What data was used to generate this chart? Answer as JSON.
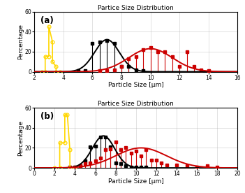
{
  "title": "Partice Size Distribution",
  "xlabel": "Particle Size [μm]",
  "ylabel": "Percentage",
  "subplot_a": {
    "label": "(a)",
    "xlim": [
      2,
      16
    ],
    "ylim": [
      0,
      60
    ],
    "xticks": [
      2,
      4,
      6,
      8,
      10,
      12,
      14,
      16
    ],
    "yticks": [
      0,
      20,
      40,
      60
    ],
    "yellow_x": [
      2.5,
      2.75,
      2.75,
      3.0,
      3.0,
      3.25,
      3.25,
      3.5,
      3.5,
      3.75
    ],
    "yellow_y": [
      0,
      0,
      15,
      15,
      45,
      30,
      10,
      5,
      0,
      0
    ],
    "black_x": [
      5.0,
      5.5,
      6.0,
      6.5,
      7.0,
      7.5,
      8.0,
      8.5,
      9.0,
      9.5
    ],
    "black_y": [
      1,
      1,
      28,
      30,
      31,
      28,
      5,
      5,
      2,
      1
    ],
    "black_mean": 7.0,
    "black_std": 0.85,
    "black_amp": 32,
    "red_x": [
      6.5,
      7.0,
      7.5,
      8.0,
      8.5,
      9.0,
      9.5,
      10.0,
      10.5,
      11.0,
      11.5,
      12.0,
      12.5,
      13.0,
      13.5,
      14.0
    ],
    "red_y": [
      1,
      1,
      2,
      5,
      13,
      15,
      22,
      24,
      20,
      20,
      15,
      5,
      20,
      5,
      2,
      1
    ],
    "red_mean": 10.0,
    "red_std": 1.5,
    "red_amp": 23
  },
  "subplot_b": {
    "label": "(b)",
    "xlim": [
      0,
      20
    ],
    "ylim": [
      0,
      60
    ],
    "xticks": [
      0,
      2,
      4,
      6,
      8,
      10,
      12,
      14,
      16,
      18,
      20
    ],
    "yticks": [
      0,
      20,
      40,
      60
    ],
    "yellow_x": [
      2.0,
      2.5,
      2.5,
      3.0,
      3.0,
      3.25,
      3.5,
      3.5,
      4.0
    ],
    "yellow_y": [
      0,
      0,
      25,
      25,
      53,
      53,
      18,
      0,
      0
    ],
    "black_x": [
      3.5,
      4.0,
      4.5,
      5.0,
      5.5,
      6.0,
      6.5,
      7.0,
      7.5,
      8.0,
      8.5,
      9.0,
      9.5,
      10.0,
      10.5,
      11.0
    ],
    "black_y": [
      1,
      1,
      2,
      7,
      21,
      22,
      31,
      31,
      21,
      5,
      4,
      2,
      1,
      1,
      1,
      1
    ],
    "black_mean": 6.8,
    "black_std": 1.1,
    "black_amp": 32,
    "red_x": [
      3.5,
      4.0,
      4.5,
      5.0,
      5.5,
      6.0,
      6.5,
      7.0,
      7.5,
      8.0,
      8.5,
      9.0,
      9.5,
      10.0,
      10.5,
      11.0,
      11.5,
      12.0,
      12.5,
      13.0,
      14.0,
      15.0,
      16.0,
      17.0,
      18.0
    ],
    "red_y": [
      1,
      1,
      2,
      4,
      5,
      7,
      10,
      18,
      19,
      26,
      18,
      20,
      15,
      17,
      12,
      18,
      8,
      8,
      5,
      3,
      3,
      2,
      1,
      2,
      1
    ],
    "red_mean": 10.5,
    "red_std": 2.5,
    "red_amp": 20
  },
  "yellow_color": "#FFD700",
  "black_color": "#000000",
  "red_color": "#CC0000",
  "grid_color": "#AAAAAA"
}
